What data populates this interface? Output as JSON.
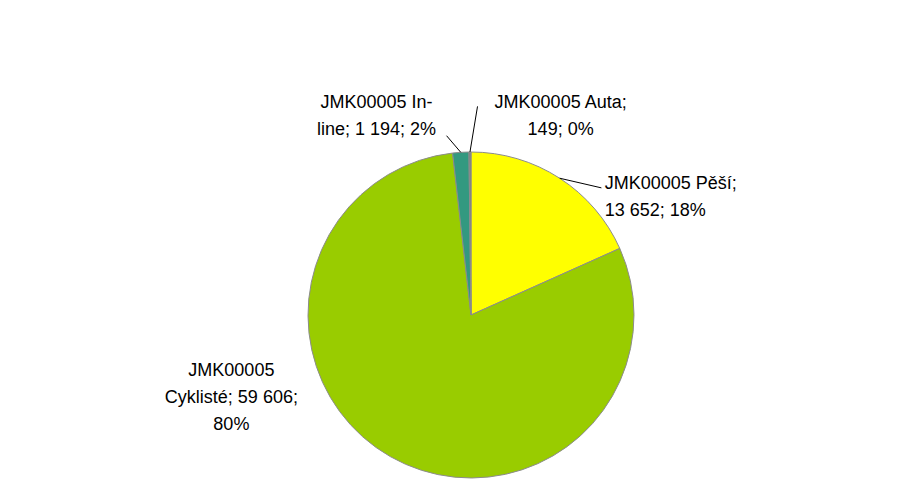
{
  "chart_data": {
    "type": "pie",
    "categories": [
      "JMK00005 Pěší",
      "JMK00005 Cyklisté",
      "JMK00005 In-line",
      "JMK00005 Auta"
    ],
    "values": [
      13652,
      59606,
      1194,
      149
    ],
    "value_labels": [
      "JMK00005 Pěší;\n13 652; 18%",
      "JMK00005\nCyklisté; 59 606;\n80%",
      "JMK00005 In-\nline; 1 194; 2%",
      "JMK00005 Auta;\n149; 0%"
    ],
    "colors": [
      "#ffff00",
      "#99cc00",
      "#339980",
      "#7f7f7f"
    ],
    "data_labels": true
  }
}
